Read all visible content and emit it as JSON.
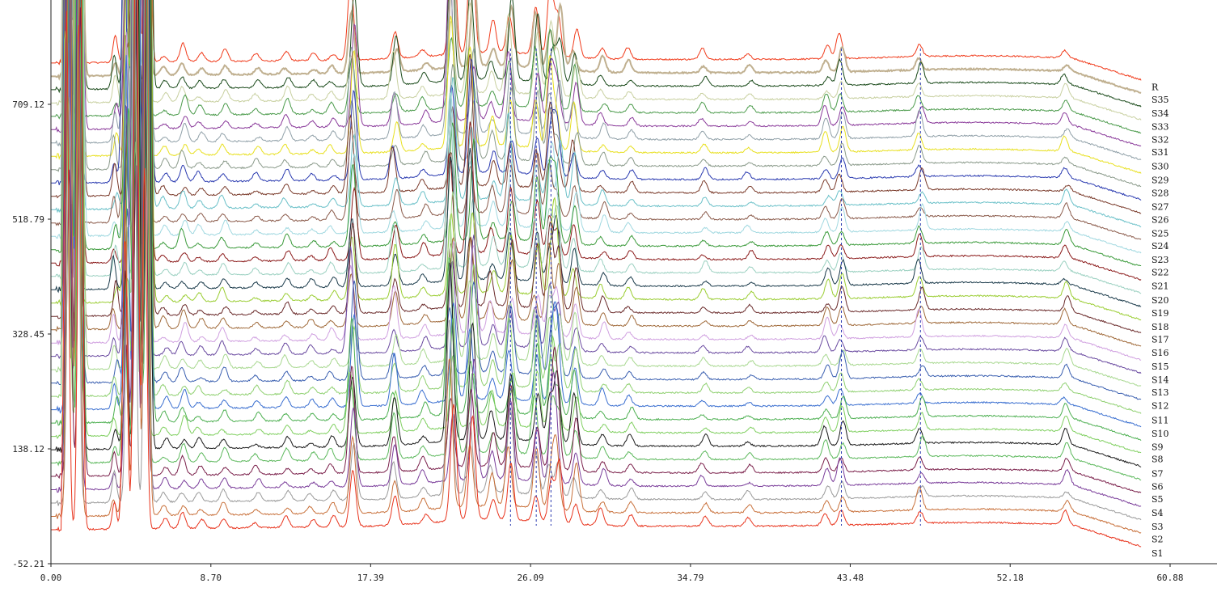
{
  "chart_data": {
    "type": "line",
    "title": "",
    "xlabel": "",
    "ylabel": "",
    "xlim": [
      0.0,
      60.88
    ],
    "ylim": [
      -52.21,
      709.12
    ],
    "x_ticks": [
      "0.00",
      "8.70",
      "17.39",
      "26.09",
      "34.79",
      "43.48",
      "52.18",
      "60.88"
    ],
    "y_ticks": [
      "-52.21",
      "138.12",
      "328.45",
      "518.79",
      "709.12"
    ],
    "grid": false,
    "legend": "right end of each trace",
    "baseline_first": 4.1,
    "baseline_step": 22.1,
    "series": [
      {
        "name": "S1",
        "color": "#e8331c"
      },
      {
        "name": "S2",
        "color": "#c8703a"
      },
      {
        "name": "S3",
        "color": "#9a9a9a"
      },
      {
        "name": "S4",
        "color": "#7a3d9a"
      },
      {
        "name": "S5",
        "color": "#7a1f4a"
      },
      {
        "name": "S6",
        "color": "#5cb85c"
      },
      {
        "name": "S7",
        "color": "#1a1a1a"
      },
      {
        "name": "S8",
        "color": "#7fcf5f"
      },
      {
        "name": "S9",
        "color": "#4caf50"
      },
      {
        "name": "S10",
        "color": "#3a6fd0"
      },
      {
        "name": "S11",
        "color": "#8fd070"
      },
      {
        "name": "S12",
        "color": "#3a5fb0"
      },
      {
        "name": "S13",
        "color": "#a8d890"
      },
      {
        "name": "S14",
        "color": "#6a4aa0"
      },
      {
        "name": "S15",
        "color": "#d0a0e0"
      },
      {
        "name": "S16",
        "color": "#a06a3a"
      },
      {
        "name": "S17",
        "color": "#6a2a2a"
      },
      {
        "name": "S18",
        "color": "#9acd32"
      },
      {
        "name": "S19",
        "color": "#1a3a4a"
      },
      {
        "name": "S20",
        "color": "#9ad0c0"
      },
      {
        "name": "S21",
        "color": "#8b1a1a"
      },
      {
        "name": "S22",
        "color": "#3a9a3a"
      },
      {
        "name": "S23",
        "color": "#a0d8e0"
      },
      {
        "name": "S24",
        "color": "#8a5a4a"
      },
      {
        "name": "S25",
        "color": "#6ac0c8"
      },
      {
        "name": "S26",
        "color": "#7a3a2a"
      },
      {
        "name": "S27",
        "color": "#2a3ab0"
      },
      {
        "name": "S28",
        "color": "#8a9a8a"
      },
      {
        "name": "S29",
        "color": "#e8e020"
      },
      {
        "name": "S30",
        "color": "#90a0a8"
      },
      {
        "name": "S31",
        "color": "#8a3a9a"
      },
      {
        "name": "S32",
        "color": "#4a9a4a"
      },
      {
        "name": "S33",
        "color": "#c8d0a0"
      },
      {
        "name": "S34",
        "color": "#1a4a1a"
      },
      {
        "name": "S35",
        "color": "#c0b090"
      },
      {
        "name": "R",
        "color": "#f03a1a"
      }
    ],
    "peaks_rt": [
      0.9,
      1.5,
      3.5,
      4.1,
      4.6,
      5.2,
      6.2,
      7.2,
      8.1,
      9.4,
      11.2,
      12.8,
      14.2,
      15.3,
      16.4,
      18.7,
      20.3,
      21.8,
      22.9,
      24.0,
      25.0,
      26.4,
      27.2,
      27.6,
      28.5,
      30.0,
      31.5,
      35.5,
      38.0,
      42.2,
      43.0,
      47.3,
      55.2
    ],
    "peaks_height": [
      900,
      900,
      40,
      400,
      900,
      900,
      14,
      22,
      12,
      16,
      10,
      18,
      10,
      14,
      120,
      60,
      16,
      200,
      150,
      40,
      100,
      80,
      100,
      80,
      60,
      20,
      14,
      14,
      10,
      24,
      32,
      30,
      18
    ],
    "reference_lines_rt": [
      25.0,
      26.4,
      27.2,
      43.0,
      47.3
    ]
  }
}
